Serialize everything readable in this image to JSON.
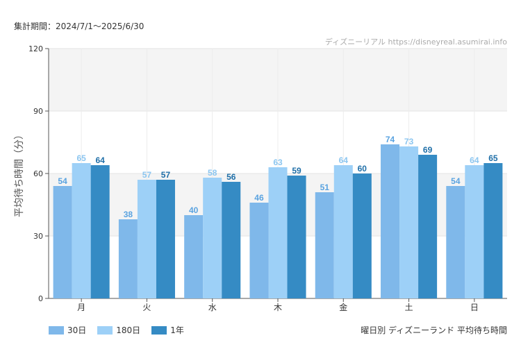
{
  "header": {
    "period_label": "集計期間：2024/7/1〜2025/6/30"
  },
  "footer": {
    "chart_caption": "曜日別 ディズニーランド 平均待ち時間"
  },
  "chart_data": {
    "type": "bar",
    "title": "",
    "watermark": "ディズニーリアル https://disneyreal.asumirai.info",
    "ylabel": "平均待ち時間（分）",
    "xlabel": "",
    "ylim": [
      0,
      120
    ],
    "yticks": [
      0,
      30,
      60,
      90,
      120
    ],
    "grid": true,
    "legend_position": "bottom-left",
    "categories": [
      "月",
      "火",
      "水",
      "木",
      "金",
      "土",
      "日"
    ],
    "series": [
      {
        "name": "30日",
        "color": "#7fb8ea",
        "label_color": "#5aa3e0",
        "values": [
          54,
          38,
          40,
          46,
          51,
          74,
          54
        ]
      },
      {
        "name": "180日",
        "color": "#9dd0f7",
        "label_color": "#8cc6f0",
        "values": [
          65,
          57,
          58,
          63,
          64,
          73,
          64
        ]
      },
      {
        "name": "1年",
        "color": "#358bc4",
        "label_color": "#1f6fa8",
        "values": [
          64,
          57,
          56,
          59,
          60,
          69,
          65
        ]
      }
    ]
  }
}
